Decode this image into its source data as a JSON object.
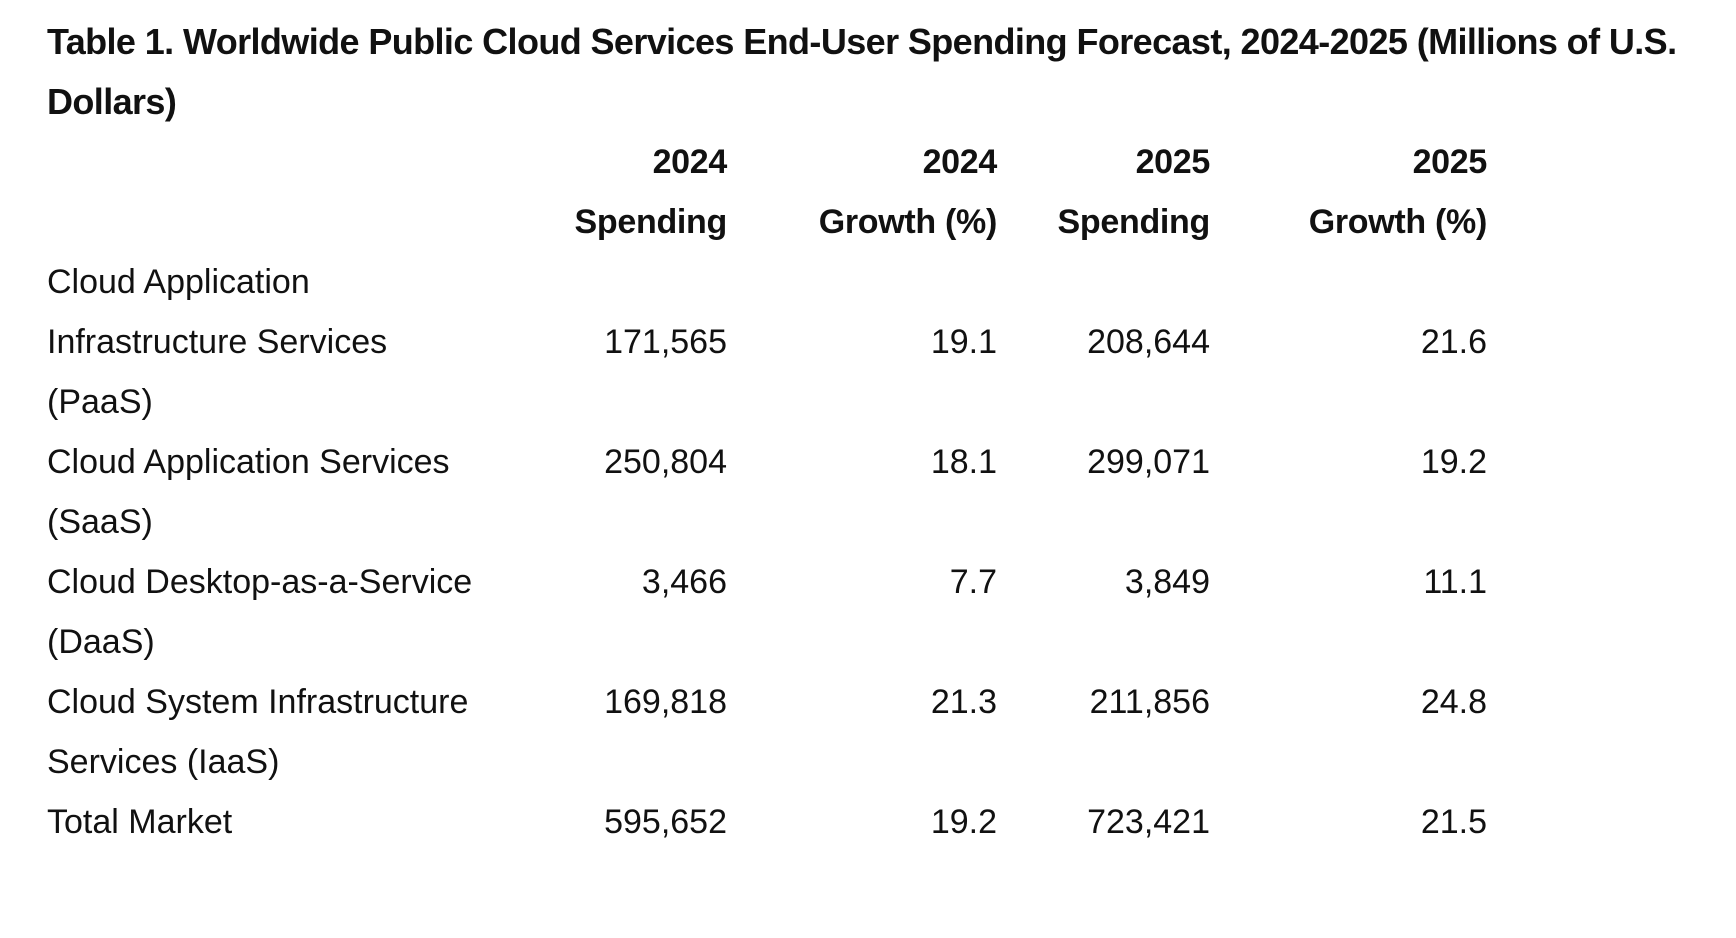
{
  "title": "Table 1. Worldwide Public Cloud Services End-User Spending Forecast, 2024-2025 (Millions of U.S. Dollars)",
  "columns": [
    {
      "year": "2024",
      "metric": "Spending"
    },
    {
      "year": "2024",
      "metric": "Growth (%)"
    },
    {
      "year": "2025",
      "metric": "Spending"
    },
    {
      "year": "2025",
      "metric": "Growth (%)"
    }
  ],
  "rows": [
    {
      "label": "Cloud Application Infrastructure Services (PaaS)",
      "spend_2024": "171,565",
      "growth_2024": "19.1",
      "spend_2025": "208,644",
      "growth_2025": "21.6"
    },
    {
      "label": "Cloud Application Services (SaaS)",
      "spend_2024": "250,804",
      "growth_2024": "18.1",
      "spend_2025": "299,071",
      "growth_2025": "19.2"
    },
    {
      "label": "Cloud Desktop-as-a-Service (DaaS)",
      "spend_2024": "3,466",
      "growth_2024": "7.7",
      "spend_2025": "3,849",
      "growth_2025": "11.1"
    },
    {
      "label": "Cloud System Infrastructure Services (IaaS)",
      "spend_2024": "169,818",
      "growth_2024": "21.3",
      "spend_2025": "211,856",
      "growth_2025": "24.8"
    }
  ],
  "total": {
    "label": "Total Market",
    "spend_2024": "595,652",
    "growth_2024": "19.2",
    "spend_2025": "723,421",
    "growth_2025": "21.5"
  }
}
